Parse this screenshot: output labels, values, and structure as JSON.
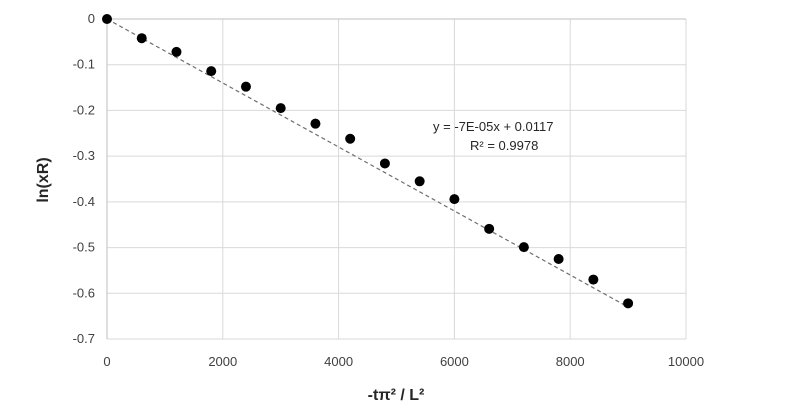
{
  "chart_data": {
    "type": "scatter",
    "xlabel": "-tπ² / L²",
    "ylabel": "ln(xR)",
    "xlim": [
      0,
      10000
    ],
    "ylim": [
      -0.7,
      0
    ],
    "x_ticks": [
      0,
      2000,
      4000,
      6000,
      8000,
      10000
    ],
    "y_ticks": [
      0,
      -0.1,
      -0.2,
      -0.3,
      -0.4,
      -0.5,
      -0.6,
      -0.7
    ],
    "x_tick_labels": [
      "0",
      "2000",
      "4000",
      "6000",
      "8000",
      "10000"
    ],
    "y_tick_labels": [
      "0",
      "-0.1",
      "-0.2",
      "-0.3",
      "-0.4",
      "-0.5",
      "-0.6",
      "-0.7"
    ],
    "grid": true,
    "series": [
      {
        "x": [
          0,
          600,
          1200,
          1800,
          2400,
          3000,
          3600,
          4200,
          4800,
          5400,
          6000,
          6600,
          7200,
          7800,
          8400,
          9000
        ],
        "y": [
          0,
          -0.042,
          -0.072,
          -0.114,
          -0.148,
          -0.195,
          -0.229,
          -0.262,
          -0.316,
          -0.355,
          -0.394,
          -0.459,
          -0.499,
          -0.525,
          -0.57,
          -0.622
        ],
        "color": "#000000"
      }
    ],
    "trendline": {
      "type": "linear",
      "slope": -7e-05,
      "intercept": 0.0117,
      "x_range": [
        0,
        9000
      ],
      "color": "#6e6e6e",
      "style": "dashed"
    },
    "annotations": {
      "equation": "y = -7E-05x + 0.0117",
      "r_squared": "R² = 0.9978"
    }
  }
}
